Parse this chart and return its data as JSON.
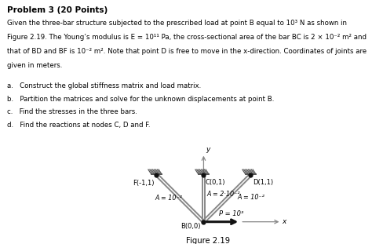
{
  "title": "Problem 3 (20 Points)",
  "desc_lines": [
    "Given the three-bar structure subjected to the prescribed load at point B equal to 10³ N as shown in",
    "Figure 2.19. The Young’s modulus is E = 10¹¹ Pa, the cross-sectional area of the bar BC is 2 × 10⁻² m² and",
    "that of BD and BF is 10⁻² m². Note that point D is free to move in the x-direction. Coordinates of joints are",
    "given in meters."
  ],
  "items": [
    "a.   Construct the global stiffness matrix and load matrix.",
    "b.   Partition the matrices and solve for the unknown displacements at point B.",
    "c.   Find the stresses in the three bars.",
    "d.   Find the reactions at nodes C, D and F."
  ],
  "fig_caption": "Figure 2.19",
  "bar_color": "#888888",
  "arrow_color": "#111111",
  "label_F": "F(-1,1)",
  "label_C": "C(0,1)",
  "label_D": "D(1,1)",
  "label_B": "B(0,0)",
  "label_A_BC": "A = 2·10⁻²",
  "label_A_BF": "A = 10⁻²",
  "label_A_BD": "A = 10⁻²",
  "label_P": "P = 10³",
  "axis_x_label": "x",
  "axis_y_label": "y"
}
